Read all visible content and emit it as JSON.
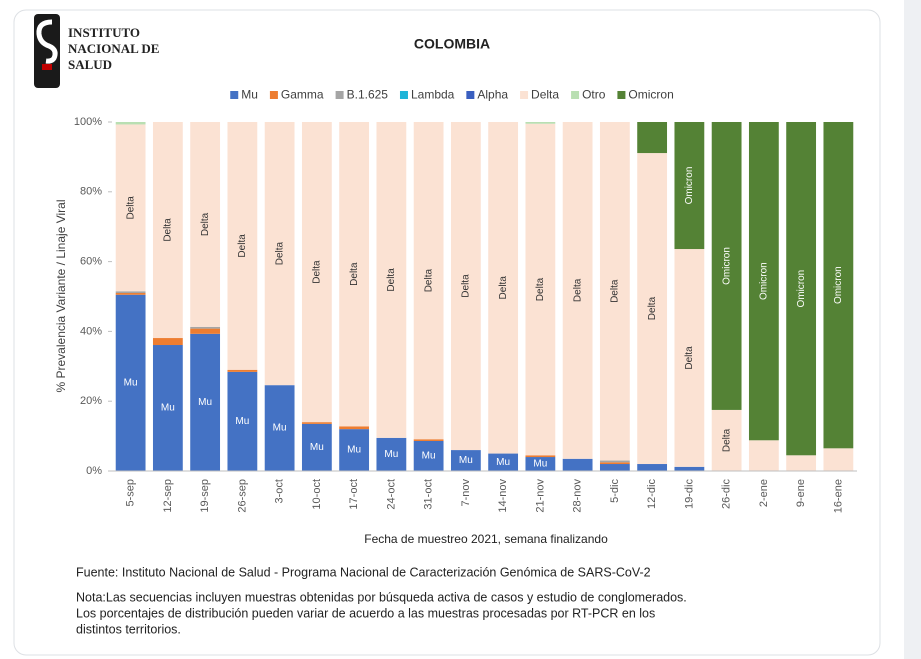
{
  "logo": [
    "INSTITUTO",
    "NACIONAL DE",
    "SALUD"
  ],
  "chart_data": {
    "type": "bar",
    "stacked": true,
    "title": "COLOMBIA",
    "ylabel": "% Prevalencia Variante / Linaje Viral",
    "xlabel": "Fecha de muestreo 2021, semana finalizando",
    "categories": [
      "5-sep",
      "12-sep",
      "19-sep",
      "26-sep",
      "3-oct",
      "10-oct",
      "17-oct",
      "24-oct",
      "31-oct",
      "7-nov",
      "14-nov",
      "21-nov",
      "28-nov",
      "5-dic",
      "12-dic",
      "19-dic",
      "26-dic",
      "2-ene",
      "9-ene",
      "16-ene"
    ],
    "series": [
      {
        "name": "Mu",
        "color": "#4472c4",
        "values": [
          50.5,
          36.1,
          39.3,
          28.4,
          24.6,
          13.5,
          12,
          9.5,
          8.6,
          6,
          5,
          4,
          3.5,
          2,
          2,
          1.2,
          0,
          0,
          0,
          0
        ]
      },
      {
        "name": "Gamma",
        "color": "#ed7d31",
        "values": [
          0.5,
          2,
          1.5,
          0.6,
          0,
          0.5,
          0.8,
          0,
          0.5,
          0,
          0,
          0.5,
          0,
          0.5,
          0,
          0,
          0,
          0,
          0,
          0
        ]
      },
      {
        "name": "B.1.625",
        "color": "#a5a5a5",
        "values": [
          0.5,
          0,
          0.5,
          0,
          0,
          0,
          0,
          0,
          0,
          0,
          0,
          0,
          0,
          0.5,
          0,
          0,
          0,
          0,
          0,
          0
        ]
      },
      {
        "name": "Lambda",
        "color": "#1fb4d8",
        "values": [
          0,
          0,
          0,
          0,
          0,
          0,
          0,
          0,
          0,
          0,
          0,
          0,
          0,
          0,
          0,
          0,
          0,
          0,
          0,
          0
        ]
      },
      {
        "name": "Alpha",
        "color": "#3a5fc0",
        "values": [
          0,
          0,
          0,
          0,
          0,
          0,
          0,
          0,
          0,
          0,
          0,
          0,
          0,
          0,
          0,
          0,
          0,
          0,
          0,
          0
        ]
      },
      {
        "name": "Delta",
        "color": "#fbe2d3",
        "values": [
          47.8,
          61.9,
          58.7,
          71,
          75.4,
          86,
          87.2,
          90.5,
          90.9,
          94,
          95,
          95,
          96.5,
          97,
          89.1,
          62.4,
          17.5,
          8.8,
          4.5,
          6.5
        ]
      },
      {
        "name": "Otro",
        "color": "#b9dfb2",
        "values": [
          0.7,
          0,
          0,
          0,
          0,
          0,
          0,
          0,
          0,
          0,
          0,
          0.5,
          0,
          0,
          0,
          0,
          0,
          0,
          0,
          0
        ]
      },
      {
        "name": "Omicron",
        "color": "#548235",
        "values": [
          0,
          0,
          0,
          0,
          0,
          0,
          0,
          0,
          0,
          0,
          0,
          0,
          0,
          0,
          8.9,
          36.4,
          82.5,
          91.2,
          95.5,
          93.5
        ]
      }
    ],
    "ylim": [
      0,
      100
    ],
    "yticks": [
      {
        "value": 0,
        "label": "0%"
      },
      {
        "value": 20,
        "label": "20%"
      },
      {
        "value": 40,
        "label": "40%"
      },
      {
        "value": 60,
        "label": "60%"
      },
      {
        "value": 80,
        "label": "80%"
      },
      {
        "value": 100,
        "label": "100%"
      }
    ],
    "grid": false,
    "legend": "top"
  },
  "source": "Fuente: Instituto Nacional de Salud - Programa Nacional de Caracterización Genómica de SARS-CoV-2",
  "note": [
    "Nota:Las secuencias incluyen muestras obtenidas por búsqueda activa de casos y estudio de conglomerados.",
    "Los porcentajes de distribución pueden variar de acuerdo a las muestras procesadas por RT-PCR en los",
    "distintos territorios."
  ]
}
